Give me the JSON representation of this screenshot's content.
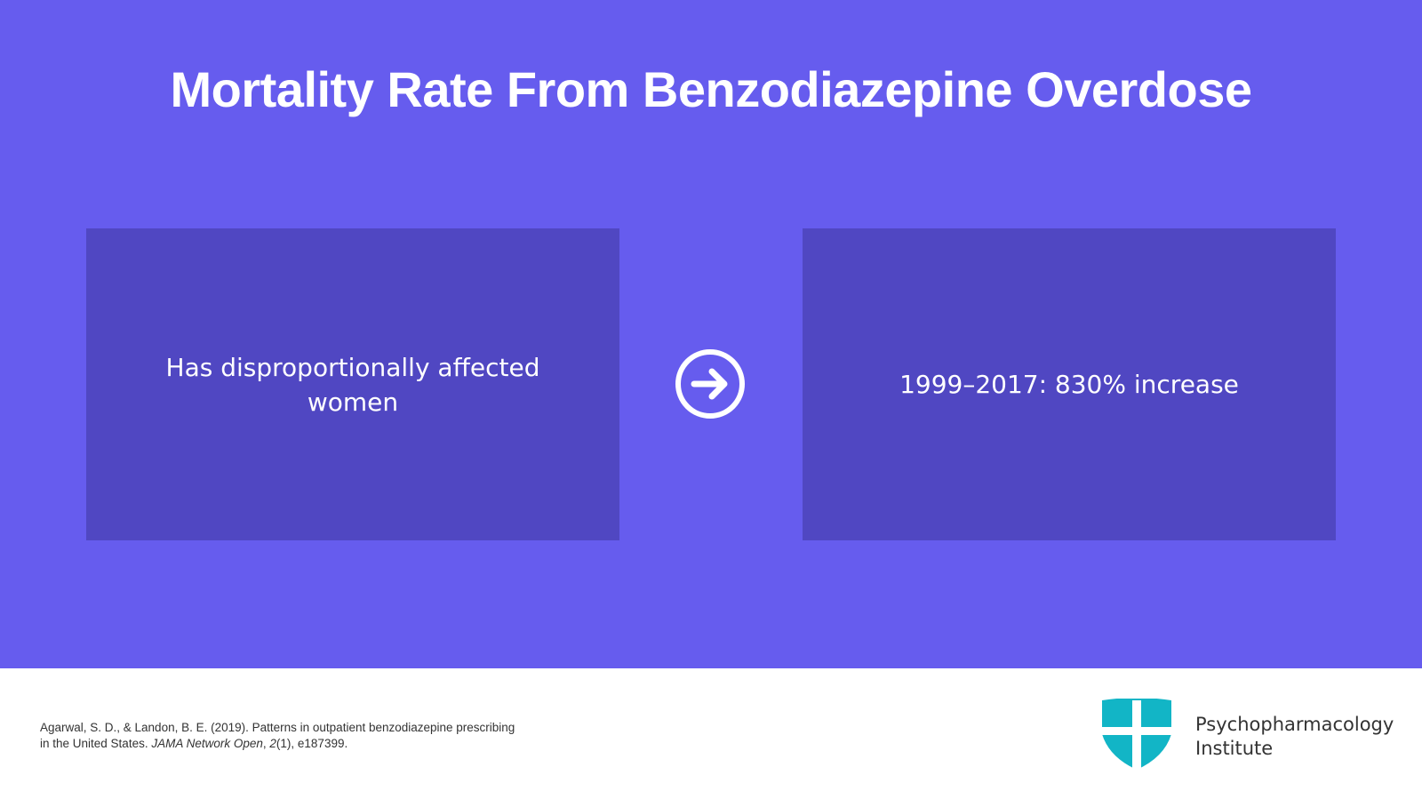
{
  "title": "Mortality Rate From Benzodiazepine Overdose",
  "cards": [
    {
      "text": "Has disproportionally affected women"
    },
    {
      "text": "1999–2017: 830% increase"
    }
  ],
  "citation": {
    "parts": [
      {
        "text": "Agarwal, S. D., & Landon, B. E. (2019). Patterns in outpatient benzodiazepine prescribing in the United States. "
      },
      {
        "text": "JAMA Network Open"
      },
      {
        "text": ", "
      },
      {
        "text": "2"
      },
      {
        "text": "(1), e187399."
      }
    ]
  },
  "logo": {
    "name_lines": [
      "Psychopharmacology",
      "Institute"
    ]
  }
}
